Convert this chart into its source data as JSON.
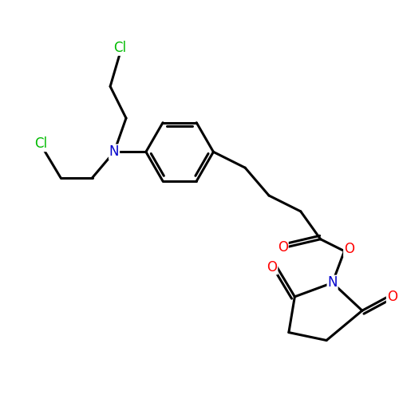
{
  "background_color": "#ffffff",
  "bond_color": "#000000",
  "bond_width": 2.2,
  "atom_colors": {
    "N": "#0000cc",
    "O": "#ff0000",
    "Cl": "#00bb00"
  },
  "font_size": 11,
  "fig_size": [
    5.0,
    5.0
  ],
  "dpi": 100
}
